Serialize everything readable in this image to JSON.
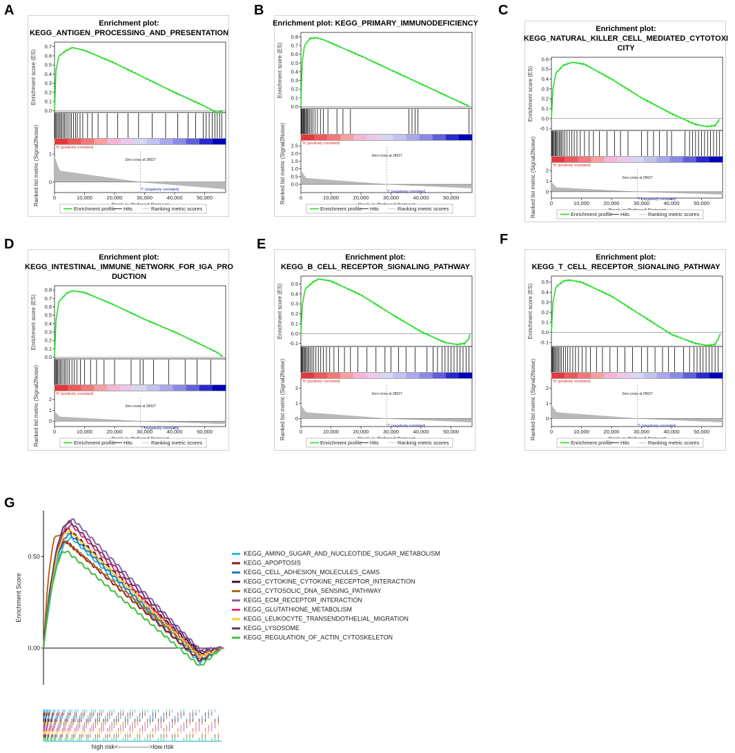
{
  "figure": {
    "panel_letters": [
      "A",
      "B",
      "C",
      "D",
      "E",
      "F",
      "G"
    ]
  },
  "chart_data": [
    {
      "panel": "A",
      "type": "line",
      "title_lines": [
        "Enrichment plot:",
        "KEGG_ANTIGEN_PROCESSING_AND_PRESENTATION"
      ],
      "ylabel_top": "Enrichment score (ES)",
      "ylabel_bottom": "Ranked list metric (Signal2Noise)",
      "xlabel": "Rank in Ordered Dataset",
      "es_ticks": [
        "0.7",
        "0.6",
        "0.5",
        "0.4",
        "0.3",
        "0.2",
        "0.1",
        "0.0"
      ],
      "es_ylim": [
        -0.02,
        0.75
      ],
      "es_curve": [
        [
          0,
          0.0
        ],
        [
          500,
          0.45
        ],
        [
          1500,
          0.6
        ],
        [
          4000,
          0.66
        ],
        [
          6000,
          0.69
        ],
        [
          10000,
          0.66
        ],
        [
          20000,
          0.52
        ],
        [
          30000,
          0.36
        ],
        [
          40000,
          0.2
        ],
        [
          50000,
          0.05
        ],
        [
          54000,
          -0.02
        ],
        [
          55500,
          -0.01
        ],
        [
          56200,
          0.01
        ]
      ],
      "metric_ticks": [
        "1",
        "0"
      ],
      "metric_ylim": [
        -0.3,
        1.2
      ],
      "x_ticks": [
        "0",
        "10,000",
        "20,000",
        "30,000",
        "40,000",
        "50,000"
      ],
      "xlim": [
        0,
        57000
      ],
      "zero_cross": "Zero cross at 28627",
      "pos_label": "'N' (positively correlated)",
      "neg_label": "'T' (negatively correlated)",
      "hits": [
        200,
        500,
        900,
        1300,
        1700,
        2100,
        2500,
        3000,
        3400,
        3900,
        4500,
        5100,
        5600,
        6300,
        7000,
        7600,
        8500,
        9400,
        11000,
        12500,
        14500,
        17500,
        21000,
        24500,
        28000,
        32500,
        37000,
        41000,
        44500,
        47000,
        49500,
        50500,
        51500,
        52500,
        53400,
        54200,
        55000,
        55700
      ],
      "legend": [
        "Enrichment profile",
        "Hits",
        "Ranking metric scores"
      ]
    },
    {
      "panel": "B",
      "type": "line",
      "title_lines": [
        "Enrichment plot: KEGG_PRIMARY_IMMUNODEFICIENCY"
      ],
      "ylabel_top": "Enrichment score (ES)",
      "ylabel_bottom": "Ranked list metric (Signal2Noise)",
      "xlabel": "Rank in Ordered Dataset",
      "es_ticks": [
        "0.8",
        "0.7",
        "0.6",
        "0.5",
        "0.4",
        "0.3",
        "0.2",
        "0.1",
        "0.0"
      ],
      "es_ylim": [
        -0.02,
        0.85
      ],
      "es_curve": [
        [
          0,
          0.0
        ],
        [
          400,
          0.5
        ],
        [
          1200,
          0.7
        ],
        [
          3000,
          0.78
        ],
        [
          5000,
          0.79
        ],
        [
          8000,
          0.76
        ],
        [
          20000,
          0.58
        ],
        [
          30000,
          0.42
        ],
        [
          40000,
          0.26
        ],
        [
          50000,
          0.1
        ],
        [
          55000,
          0.02
        ],
        [
          56200,
          0.0
        ]
      ],
      "metric_ticks": [
        "2.5",
        "2.0",
        "1.5",
        "1.0",
        "0.5",
        "0.0"
      ],
      "metric_ylim": [
        -0.4,
        2.6
      ],
      "x_ticks": [
        "0",
        "10,000",
        "20,000",
        "30,000",
        "40,000",
        "50,000"
      ],
      "xlim": [
        0,
        57000
      ],
      "zero_cross": "Zero cross at 28627",
      "pos_label": "'N' (positively correlated)",
      "neg_label": "'T' (negatively correlated)",
      "hits": [
        100,
        300,
        500,
        800,
        1000,
        1300,
        1600,
        1900,
        2200,
        2600,
        3000,
        3500,
        4000,
        4700,
        5500,
        6500,
        7500,
        9000,
        12000,
        14000,
        16500,
        36000,
        37000,
        38000,
        39000,
        56000
      ],
      "legend": [
        "Enrichment profile",
        "Hits",
        "Ranking metric scores"
      ]
    },
    {
      "panel": "C",
      "type": "line",
      "title_lines": [
        "Enrichment plot:",
        "KEGG_NATURAL_KILLER_CELL_MEDIATED_CYTOTOXI",
        "CITY"
      ],
      "ylabel_top": "Enrichment score (ES)",
      "ylabel_bottom": "Ranked list metric (Signal2Noise)",
      "xlabel": "Rank in Ordered Dataset",
      "es_ticks": [
        "0.6",
        "0.5",
        "0.4",
        "0.3",
        "0.2",
        "0.1",
        "0.0",
        "-0.1"
      ],
      "es_ylim": [
        -0.12,
        0.62
      ],
      "es_curve": [
        [
          0,
          0.0
        ],
        [
          500,
          0.3
        ],
        [
          1500,
          0.46
        ],
        [
          4000,
          0.54
        ],
        [
          7000,
          0.57
        ],
        [
          11000,
          0.55
        ],
        [
          20000,
          0.4
        ],
        [
          30000,
          0.21
        ],
        [
          40000,
          0.05
        ],
        [
          48000,
          -0.06
        ],
        [
          52000,
          -0.08
        ],
        [
          54500,
          -0.07
        ],
        [
          56200,
          0.0
        ]
      ],
      "metric_ticks": [
        "2",
        "1",
        "0"
      ],
      "metric_ylim": [
        -0.4,
        2.4
      ],
      "x_ticks": [
        "0",
        "10,000",
        "20,000",
        "30,000",
        "40,000",
        "50,000"
      ],
      "xlim": [
        0,
        57000
      ],
      "zero_cross": "Zero cross at 28627",
      "pos_label": "'N' (positively correlated)",
      "neg_label": "'T' (negatively correlated)",
      "hits": [
        100,
        300,
        600,
        900,
        1200,
        1500,
        1800,
        2200,
        2600,
        3000,
        3400,
        3900,
        4500,
        5200,
        6000,
        6800,
        7600,
        8500,
        9600,
        11000,
        12500,
        14000,
        16000,
        18500,
        21000,
        23000,
        25500,
        30000,
        32000,
        34000,
        36000,
        38500,
        40000,
        44500,
        46000,
        47000,
        48000,
        49000,
        50000,
        51000,
        52000,
        53000,
        54000,
        55000,
        56000
      ],
      "legend": [
        "Enrichment profile",
        "Hits",
        "Ranking metric scores"
      ]
    },
    {
      "panel": "D",
      "type": "line",
      "title_lines": [
        "Enrichment plot:",
        "KEGG_INTESTINAL_IMMUNE_NETWORK_FOR_IGA_PRO",
        "DUCTION"
      ],
      "ylabel_top": "Enrichment score (ES)",
      "ylabel_bottom": "Ranked list metric (Signal2Noise)",
      "xlabel": "Rank in Ordered Dataset",
      "es_ticks": [
        "0.8",
        "0.7",
        "0.6",
        "0.5",
        "0.4",
        "0.3",
        "0.2",
        "0.1",
        "0.0"
      ],
      "es_ylim": [
        -0.02,
        0.85
      ],
      "es_curve": [
        [
          0,
          0.0
        ],
        [
          500,
          0.45
        ],
        [
          1500,
          0.66
        ],
        [
          4000,
          0.76
        ],
        [
          6000,
          0.79
        ],
        [
          10000,
          0.77
        ],
        [
          20000,
          0.62
        ],
        [
          30000,
          0.45
        ],
        [
          40000,
          0.3
        ],
        [
          50000,
          0.13
        ],
        [
          54000,
          0.06
        ],
        [
          56000,
          0.01
        ]
      ],
      "metric_ticks": [
        "2",
        "1",
        "0"
      ],
      "metric_ylim": [
        -0.3,
        2.4
      ],
      "x_ticks": [
        "0",
        "10,000",
        "20,000",
        "30,000",
        "40,000",
        "50,000"
      ],
      "xlim": [
        0,
        57000
      ],
      "zero_cross": "Zero cross at 28627",
      "pos_label": "'N' (positively correlated)",
      "neg_label": "'T' (negatively correlated)",
      "hits": [
        200,
        500,
        800,
        1100,
        1500,
        1900,
        2300,
        2800,
        3300,
        3800,
        4400,
        5000,
        5800,
        6600,
        7500,
        8600,
        10000,
        12000,
        14000,
        16500,
        20000,
        25500,
        28500,
        29500,
        33000,
        38000,
        43500,
        47500,
        52000
      ],
      "legend": [
        "Enrichment profile",
        "Hits",
        "Ranking metric scores"
      ]
    },
    {
      "panel": "E",
      "type": "line",
      "title_lines": [
        "Enrichment plot:",
        "KEGG_B_CELL_RECEPTOR_SIGNALING_PATHWAY"
      ],
      "ylabel_top": "Enrichment score (ES)",
      "ylabel_bottom": "Ranked list metric (Signal2Noise)",
      "xlabel": "Rank in Ordered Dataset",
      "es_ticks": [
        "0.5",
        "0.4",
        "0.3",
        "0.2",
        "0.1",
        "0.0",
        "-0.1"
      ],
      "es_ylim": [
        -0.13,
        0.58
      ],
      "es_curve": [
        [
          0,
          0.0
        ],
        [
          500,
          0.3
        ],
        [
          1500,
          0.45
        ],
        [
          4000,
          0.52
        ],
        [
          6000,
          0.55
        ],
        [
          10000,
          0.53
        ],
        [
          20000,
          0.39
        ],
        [
          30000,
          0.2
        ],
        [
          40000,
          0.02
        ],
        [
          48000,
          -0.09
        ],
        [
          52000,
          -0.11
        ],
        [
          54500,
          -0.1
        ],
        [
          56000,
          -0.05
        ],
        [
          56300,
          0.0
        ]
      ],
      "metric_ticks": [
        "2",
        "1",
        "0"
      ],
      "metric_ylim": [
        -0.4,
        2.4
      ],
      "x_ticks": [
        "0",
        "10,000",
        "20,000",
        "30,000",
        "40,000",
        "50,000"
      ],
      "xlim": [
        0,
        57000
      ],
      "zero_cross": "Zero cross at 28627",
      "pos_label": "'N' (positively correlated)",
      "neg_label": "'T' (negatively correlated)",
      "hits": [
        100,
        300,
        600,
        900,
        1200,
        1500,
        1900,
        2300,
        2700,
        3200,
        3700,
        4300,
        5000,
        5800,
        6600,
        7500,
        8500,
        9600,
        11000,
        12500,
        14500,
        16500,
        19000,
        22000,
        25000,
        28000,
        30000,
        32500,
        35000,
        38000,
        42000,
        44000,
        45500,
        47000,
        48000,
        49000,
        50000,
        51000,
        52000,
        53000,
        54000,
        55000,
        56000
      ],
      "legend": [
        "Enrichment profile",
        "Hits",
        "Ranking metric scores"
      ]
    },
    {
      "panel": "F",
      "type": "line",
      "title_lines": [
        "Enrichment plot:",
        "KEGG_T_CELL_RECEPTOR_SIGNALING_PATHWAY"
      ],
      "ylabel_top": "Enrichment score (ES)",
      "ylabel_bottom": "Ranked list metric (Signal2Noise)",
      "xlabel": "Rank in Ordered Dataset",
      "es_ticks": [
        "0.5",
        "0.4",
        "0.3",
        "0.2",
        "0.1",
        "0.0",
        "-0.1"
      ],
      "es_ylim": [
        -0.14,
        0.56
      ],
      "es_curve": [
        [
          0,
          0.0
        ],
        [
          500,
          0.3
        ],
        [
          1500,
          0.45
        ],
        [
          4000,
          0.51
        ],
        [
          6000,
          0.52
        ],
        [
          10000,
          0.5
        ],
        [
          20000,
          0.36
        ],
        [
          30000,
          0.17
        ],
        [
          40000,
          -0.02
        ],
        [
          48000,
          -0.11
        ],
        [
          52000,
          -0.13
        ],
        [
          54500,
          -0.12
        ],
        [
          55800,
          -0.05
        ],
        [
          56300,
          -0.01
        ]
      ],
      "metric_ticks": [
        "2",
        "1",
        "0"
      ],
      "metric_ylim": [
        -0.4,
        2.4
      ],
      "x_ticks": [
        "0",
        "10,000",
        "20,000",
        "30,000",
        "40,000",
        "50,000"
      ],
      "xlim": [
        0,
        57000
      ],
      "zero_cross": "Zero cross at 28627",
      "pos_label": "'N' (positively correlated)",
      "neg_label": "'T' (negatively correlated)",
      "hits": [
        100,
        300,
        600,
        900,
        1200,
        1600,
        2000,
        2400,
        2900,
        3400,
        4000,
        4700,
        5400,
        6200,
        7100,
        8000,
        9000,
        10200,
        11500,
        13000,
        15000,
        17000,
        19500,
        22000,
        24500,
        27000,
        30000,
        32000,
        34500,
        37000,
        39000,
        41000,
        44000,
        46000,
        47500,
        48500,
        49500,
        50500,
        51500,
        52500,
        53500,
        54500,
        55500
      ],
      "legend": [
        "Enrichment profile",
        "Hits",
        "Ranking metric scores"
      ]
    },
    {
      "panel": "G",
      "type": "line",
      "ylabel": "Enrichment Score",
      "y_ticks": [
        "0.50",
        "0.00"
      ],
      "y_tick_values": [
        0.5,
        0.0
      ],
      "ylim": [
        -0.2,
        0.75
      ],
      "xlim": [
        0,
        100
      ],
      "xlabel": "high risk<--------------->low risk",
      "series": [
        {
          "name": "KEGG_AMINO_SUGAR_AND_NUCLEOTIDE_SUGAR_METABOLISM",
          "color": "#2fb7d8",
          "peak": 0.6,
          "peak_pos": 16,
          "min": -0.08
        },
        {
          "name": "KEGG_APOPTOSIS",
          "color": "#8b1a1a",
          "peak": 0.58,
          "peak_pos": 13,
          "min": -0.07
        },
        {
          "name": "KEGG_CELL_ADHESION_MOLECULES_CAMS",
          "color": "#1f7bbf",
          "peak": 0.62,
          "peak_pos": 15,
          "min": -0.06
        },
        {
          "name": "KEGG_CYTOKINE_CYTOKINE_RECEPTOR_INTERACTION",
          "color": "#3a1030",
          "peak": 0.65,
          "peak_pos": 14,
          "min": -0.03
        },
        {
          "name": "KEGG_CYTOSOLIC_DNA_SENSING_PATHWAY",
          "color": "#b5651d",
          "peak": 0.62,
          "peak_pos": 8,
          "min": -0.04
        },
        {
          "name": "KEGG_ECM_RECEPTOR_INTERACTION",
          "color": "#8a5aa8",
          "peak": 0.7,
          "peak_pos": 17,
          "min": -0.01
        },
        {
          "name": "KEGG_GLUTATHIONE_METABOLISM",
          "color": "#e8326b",
          "peak": 0.67,
          "peak_pos": 16,
          "min": -0.05
        },
        {
          "name": "KEGG_LEUKOCYTE_TRANSENDOTHELIAL_MIGRATION",
          "color": "#f2cd2f",
          "peak": 0.64,
          "peak_pos": 15,
          "min": -0.05
        },
        {
          "name": "KEGG_LYSOSOME",
          "color": "#6a3a6a",
          "peak": 0.69,
          "peak_pos": 15,
          "min": -0.02
        },
        {
          "name": "KEGG_REGULATION_OF_ACTIN_CYTOSKELETON",
          "color": "#3fbf3f",
          "peak": 0.53,
          "peak_pos": 13,
          "min": -0.1
        }
      ]
    }
  ]
}
